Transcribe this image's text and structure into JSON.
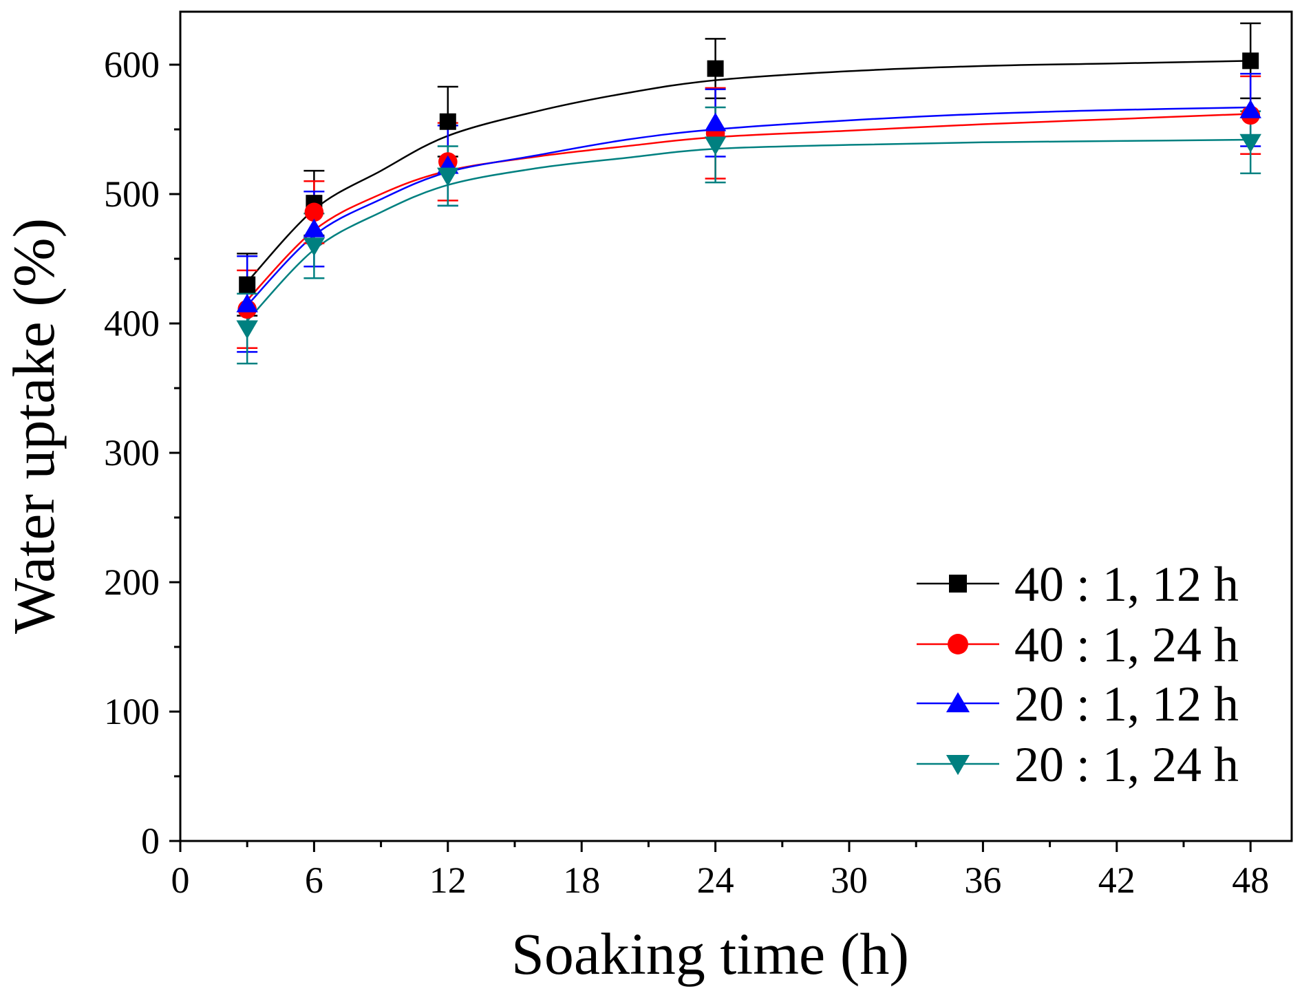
{
  "chart_data": {
    "type": "scatter",
    "title": "",
    "xlabel": "Soaking time (h)",
    "ylabel": "Water uptake (%)",
    "xlim": [
      0,
      50
    ],
    "ylim": [
      0,
      650
    ],
    "xticks": [
      0,
      6,
      12,
      18,
      24,
      30,
      36,
      42,
      48
    ],
    "xtick_labels": [
      "0",
      "6",
      "12",
      "18",
      "24",
      "30",
      "36",
      "42",
      "48"
    ],
    "yticks": [
      0,
      100,
      200,
      300,
      400,
      500,
      600
    ],
    "ytick_labels": [
      "0",
      "100",
      "200",
      "300",
      "400",
      "500",
      "600"
    ],
    "grid": false,
    "legend_position": "bottom-right",
    "fit_curves": true,
    "x": [
      3,
      6,
      12,
      24,
      48
    ],
    "series": [
      {
        "name": "40 : 1, 12 h",
        "color": "#000000",
        "marker": "square",
        "values": [
          430,
          493,
          556,
          597,
          603
        ],
        "errors": [
          24,
          25,
          27,
          23,
          29
        ],
        "fit": [
          [
            3,
            432
          ],
          [
            6,
            488
          ],
          [
            9,
            518
          ],
          [
            12,
            545
          ],
          [
            16,
            564
          ],
          [
            20,
            578
          ],
          [
            24,
            588
          ],
          [
            30,
            595
          ],
          [
            36,
            599
          ],
          [
            42,
            601
          ],
          [
            48,
            603
          ]
        ]
      },
      {
        "name": "40 : 1, 24 h",
        "color": "#ff0000",
        "marker": "circle",
        "values": [
          411,
          486,
          525,
          547,
          561
        ],
        "errors": [
          30,
          24,
          30,
          35,
          30
        ],
        "fit": [
          [
            3,
            418
          ],
          [
            6,
            472
          ],
          [
            9,
            500
          ],
          [
            12,
            518
          ],
          [
            16,
            529
          ],
          [
            20,
            537
          ],
          [
            24,
            544
          ],
          [
            30,
            549
          ],
          [
            36,
            554
          ],
          [
            42,
            558
          ],
          [
            48,
            562
          ]
        ]
      },
      {
        "name": "20 : 1, 12 h",
        "color": "#0000ff",
        "marker": "triangle-up",
        "values": [
          415,
          473,
          522,
          555,
          565
        ],
        "errors": [
          37,
          29,
          31,
          26,
          28
        ],
        "fit": [
          [
            3,
            414
          ],
          [
            6,
            468
          ],
          [
            9,
            496
          ],
          [
            12,
            517
          ],
          [
            16,
            530
          ],
          [
            20,
            542
          ],
          [
            24,
            550
          ],
          [
            30,
            557
          ],
          [
            36,
            562
          ],
          [
            42,
            565
          ],
          [
            48,
            567
          ]
        ]
      },
      {
        "name": "20 : 1, 24 h",
        "color": "#008080",
        "marker": "triangle-down",
        "values": [
          396,
          460,
          514,
          538,
          540
        ],
        "errors": [
          27,
          25,
          23,
          29,
          24
        ],
        "fit": [
          [
            3,
            402
          ],
          [
            6,
            457
          ],
          [
            9,
            486
          ],
          [
            12,
            507
          ],
          [
            16,
            520
          ],
          [
            20,
            528
          ],
          [
            24,
            535
          ],
          [
            30,
            538
          ],
          [
            36,
            540
          ],
          [
            42,
            541
          ],
          [
            48,
            542
          ]
        ]
      }
    ]
  }
}
